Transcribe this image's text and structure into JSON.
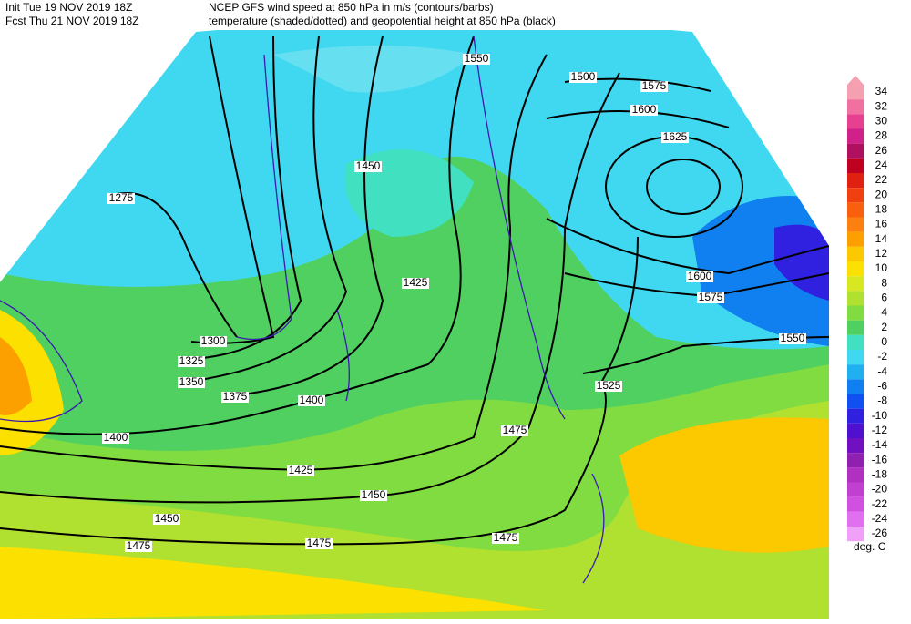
{
  "header": {
    "init": "Init   Tue 19 NOV 2019 18Z",
    "fcst": "Fcst Thu 21 NOV 2019 18Z",
    "title_line1": "NCEP GFS wind speed at 850 hPa in m/s (contours/barbs)",
    "title_line2": "temperature (shaded/dotted) and geopotential height at 850 hPa (black)"
  },
  "map": {
    "height_labels": [
      1275,
      1300,
      1325,
      1350,
      1375,
      1400,
      1400,
      1425,
      1425,
      1450,
      1450,
      1450,
      1475,
      1475,
      1475,
      1475,
      1500,
      1550,
      1575,
      1600,
      1625,
      1600,
      1575,
      1550,
      1525
    ]
  },
  "colorbar": {
    "levels": [
      34,
      32,
      30,
      28,
      26,
      24,
      22,
      20,
      18,
      16,
      14,
      12,
      10,
      8,
      6,
      4,
      2,
      0,
      -2,
      -4,
      -6,
      -8,
      -10,
      -12,
      -14,
      -16,
      -18,
      -20,
      -22,
      -24,
      -26
    ],
    "colors": [
      "#f4a0b0",
      "#f070a0",
      "#e84090",
      "#d0208a",
      "#b01060",
      "#c00020",
      "#e02010",
      "#f04010",
      "#f86010",
      "#fc8010",
      "#fca000",
      "#fcc800",
      "#fce000",
      "#d8e820",
      "#b0e030",
      "#80dc40",
      "#50d060",
      "#40e0c0",
      "#40d8f0",
      "#20b0f0",
      "#1080f0",
      "#1050f0",
      "#3020e0",
      "#5010d0",
      "#7010c0",
      "#9020b0",
      "#b030c0",
      "#c040d0",
      "#d050e0",
      "#e070f0",
      "#f0a0f8"
    ],
    "unit": "deg. C"
  }
}
